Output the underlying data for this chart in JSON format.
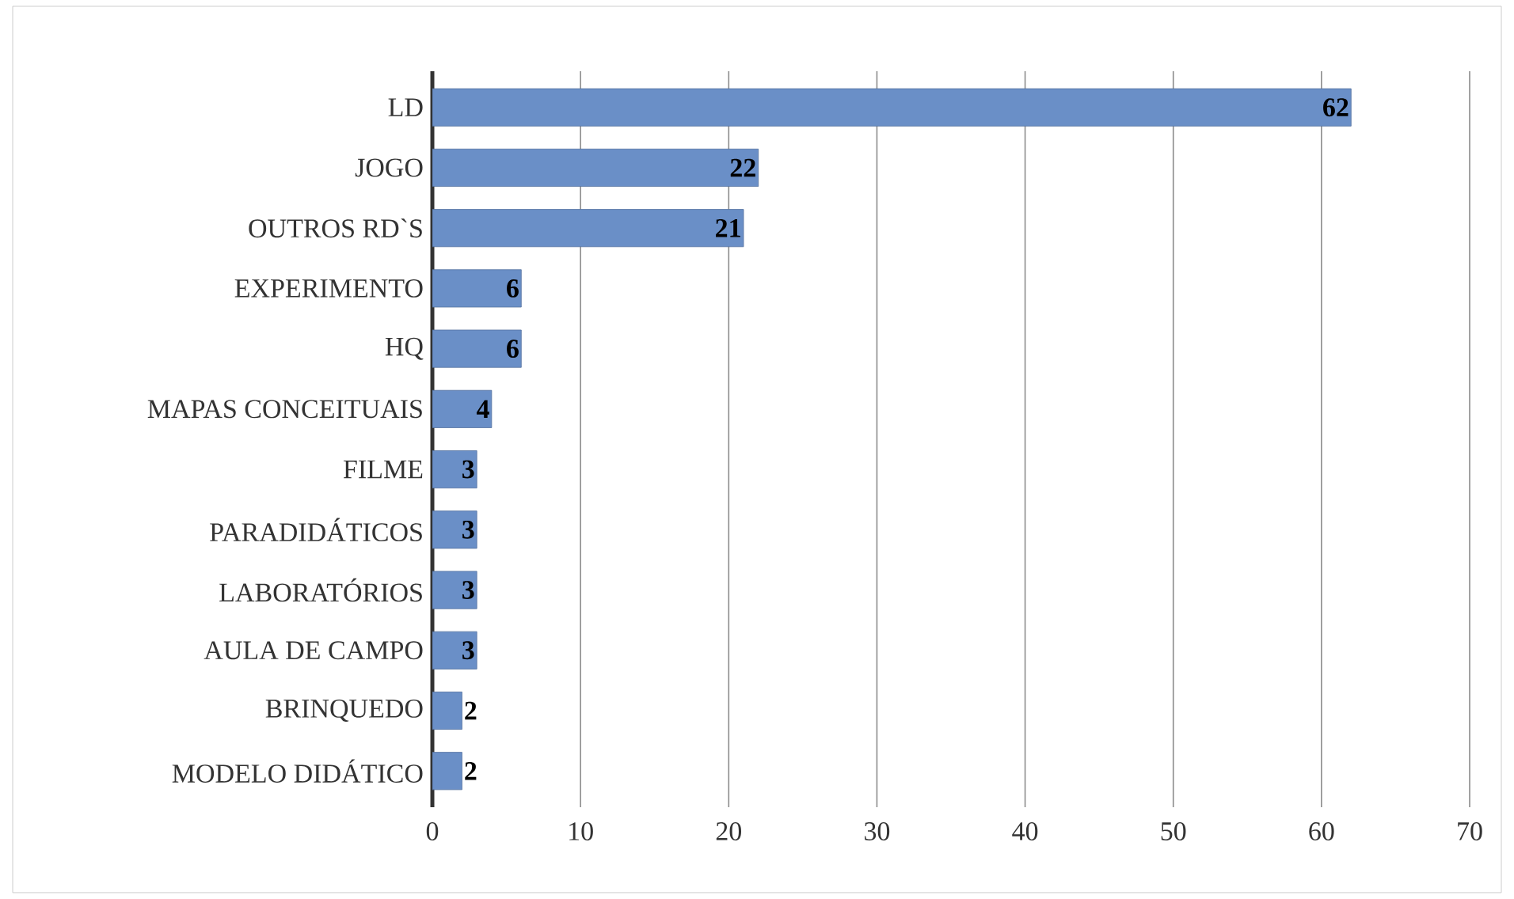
{
  "chart_data": {
    "type": "bar",
    "orientation": "horizontal",
    "categories": [
      "LD",
      "JOGO",
      "OUTROS RD`S",
      "EXPERIMENTO",
      "HQ",
      "MAPAS CONCEITUAIS",
      "FILME",
      "PARADIDÁTICOS",
      "LABORATÓRIOS",
      "AULA DE CAMPO",
      "BRINQUEDO",
      "MODELO DIDÁTICO"
    ],
    "values": [
      62,
      22,
      21,
      6,
      6,
      4,
      3,
      3,
      3,
      3,
      2,
      2
    ],
    "color": "#6a8fc7",
    "xlim": [
      0,
      70
    ],
    "xticks": [
      0,
      10,
      20,
      30,
      40,
      50,
      60,
      70
    ],
    "grid": "x",
    "data_labels": true
  }
}
